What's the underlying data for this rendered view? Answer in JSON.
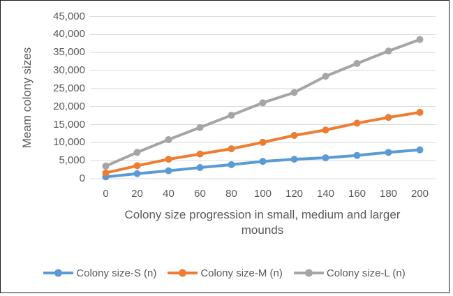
{
  "frame": {
    "border_color": "#1a1a1a",
    "background": "#ffffff"
  },
  "chart_data": {
    "type": "line",
    "title": "",
    "ylabel": "Meam colony sizes",
    "xlabel": "Colony size progression in small, medium and larger mounds",
    "x": [
      0,
      20,
      40,
      60,
      80,
      100,
      120,
      140,
      160,
      180,
      200
    ],
    "x_tick_labels": [
      "0",
      "20",
      "40",
      "60",
      "80",
      "100",
      "120",
      "140",
      "160",
      "180",
      "200"
    ],
    "ylim": [
      0,
      45000
    ],
    "y_tick_step": 5000,
    "y_tick_labels": [
      "0",
      "5,000",
      "10,000",
      "15,000",
      "20,000",
      "25,000",
      "30,000",
      "35,000",
      "40,000",
      "45,000"
    ],
    "grid": "horizontal",
    "gridline_color": "#d9d9d9",
    "text_color": "#595959",
    "legend_position": "bottom",
    "series": [
      {
        "name": "Colony size-S (n)",
        "color": "#5B9BD5",
        "values": [
          500,
          1400,
          2200,
          3100,
          3900,
          4800,
          5400,
          5800,
          6450,
          7300,
          8000
        ]
      },
      {
        "name": "Colony size-M (n)",
        "color": "#ED7D31",
        "values": [
          1600,
          3600,
          5400,
          6850,
          8300,
          10100,
          12000,
          13500,
          15400,
          17000,
          18400
        ]
      },
      {
        "name": "Colony size-L (n)",
        "color": "#A5A5A5",
        "values": [
          3500,
          7300,
          10850,
          14200,
          17600,
          21050,
          23900,
          28400,
          31950,
          35400,
          38600
        ]
      }
    ]
  }
}
